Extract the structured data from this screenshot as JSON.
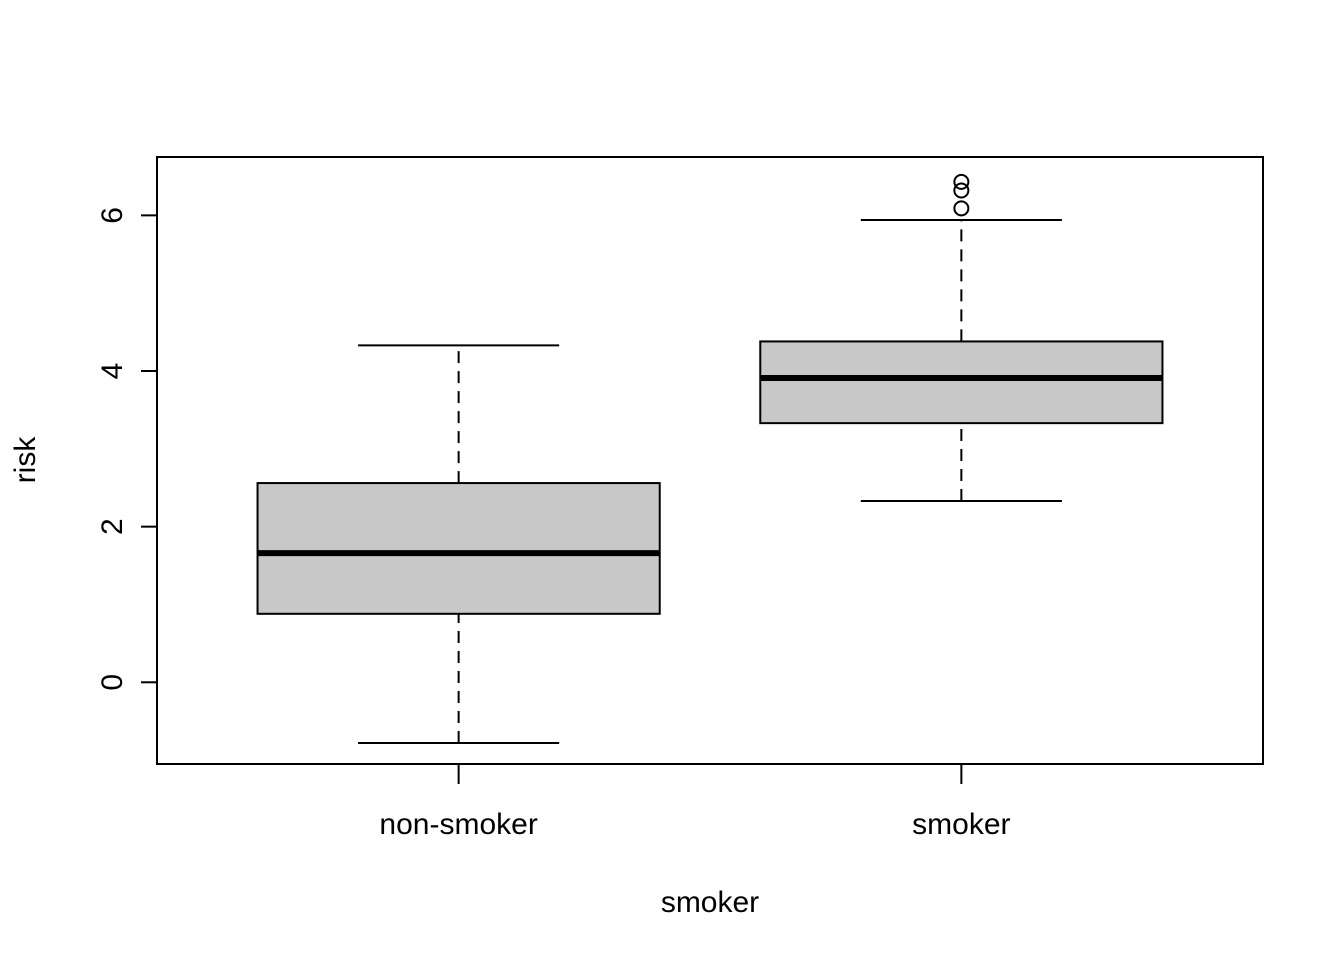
{
  "chart_data": {
    "type": "boxplot",
    "title": "",
    "xlabel": "smoker",
    "ylabel": "risk",
    "ylim": [
      -1.05,
      6.75
    ],
    "yticks": [
      0,
      2,
      4,
      6
    ],
    "grid": false,
    "categories": [
      "non-smoker",
      "smoker"
    ],
    "boxes": [
      {
        "category": "non-smoker",
        "whisker_low": -0.78,
        "q1": 0.88,
        "median": 1.66,
        "q3": 2.56,
        "whisker_high": 4.33,
        "outliers": []
      },
      {
        "category": "smoker",
        "whisker_low": 2.33,
        "q1": 3.33,
        "median": 3.91,
        "q3": 4.38,
        "whisker_high": 5.94,
        "outliers": [
          6.09,
          6.32,
          6.43
        ]
      }
    ],
    "colors": {
      "box_fill": "#c8c8c8",
      "stroke": "#000000"
    }
  }
}
